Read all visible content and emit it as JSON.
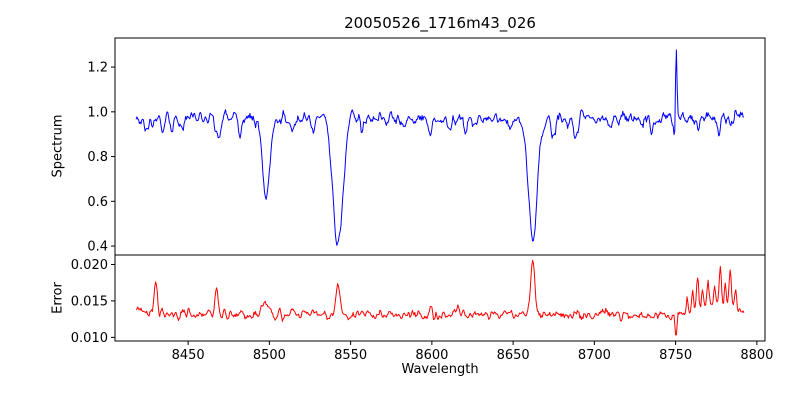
{
  "figure": {
    "background": "#ffffff",
    "axes_color": "#000000"
  },
  "chart_data": [
    {
      "type": "line",
      "name": "spectrum",
      "title": "20050526_1716m43_026",
      "ylabel": "Spectrum",
      "line_color": "#0000ff",
      "legend": "none",
      "grid": false,
      "xlim": [
        8405,
        8805
      ],
      "ylim": [
        0.36,
        1.33
      ],
      "yticks": [
        0.4,
        0.6,
        0.8,
        1.0,
        1.2
      ],
      "ytick_labels": [
        "0.4",
        "0.6",
        "0.8",
        "1.0",
        "1.2"
      ],
      "x_start": 8418,
      "x_end": 8792,
      "x_step": 0.5,
      "continuum_level": 0.972,
      "noise_sigma": 0.025,
      "noise_seed": 20050526,
      "absorption_lines": [
        {
          "center": 8424.0,
          "depth": 0.05,
          "width": 1.0
        },
        {
          "center": 8434.0,
          "depth": 0.06,
          "width": 1.2
        },
        {
          "center": 8440.0,
          "depth": 0.05,
          "width": 1.0
        },
        {
          "center": 8447.0,
          "depth": 0.04,
          "width": 1.0
        },
        {
          "center": 8468.5,
          "depth": 0.09,
          "width": 1.3
        },
        {
          "center": 8482.0,
          "depth": 0.05,
          "width": 1.0
        },
        {
          "center": 8498.0,
          "depth": 0.37,
          "width": 2.3
        },
        {
          "center": 8514.0,
          "depth": 0.07,
          "width": 1.2
        },
        {
          "center": 8527.0,
          "depth": 0.05,
          "width": 1.0
        },
        {
          "center": 8542.1,
          "depth": 0.575,
          "width": 3.0
        },
        {
          "center": 8556.8,
          "depth": 0.05,
          "width": 1.0
        },
        {
          "center": 8582.3,
          "depth": 0.05,
          "width": 1.0
        },
        {
          "center": 8598.8,
          "depth": 0.06,
          "width": 1.2
        },
        {
          "center": 8611.0,
          "depth": 0.05,
          "width": 1.0
        },
        {
          "center": 8621.0,
          "depth": 0.06,
          "width": 1.0
        },
        {
          "center": 8648.0,
          "depth": 0.04,
          "width": 1.0
        },
        {
          "center": 8662.1,
          "depth": 0.54,
          "width": 2.8
        },
        {
          "center": 8674.8,
          "depth": 0.07,
          "width": 1.2
        },
        {
          "center": 8688.6,
          "depth": 0.09,
          "width": 1.4
        },
        {
          "center": 8710.2,
          "depth": 0.05,
          "width": 1.0
        },
        {
          "center": 8729.0,
          "depth": 0.04,
          "width": 1.0
        },
        {
          "center": 8736.0,
          "depth": 0.05,
          "width": 1.0
        },
        {
          "center": 8749.6,
          "depth": 0.14,
          "width": 0.5
        },
        {
          "center": 8757.0,
          "depth": 0.04,
          "width": 0.8
        },
        {
          "center": 8764.0,
          "depth": 0.04,
          "width": 0.8
        },
        {
          "center": 8777.0,
          "depth": 0.05,
          "width": 0.8
        },
        {
          "center": 8784.0,
          "depth": 0.04,
          "width": 0.8
        }
      ],
      "emission_spikes": [
        {
          "center": 8750.3,
          "height": 0.34,
          "width": 0.45
        }
      ]
    },
    {
      "type": "line",
      "name": "error",
      "ylabel": "Error",
      "xlabel": "Wavelength",
      "line_color": "#ff0000",
      "legend": "none",
      "grid": false,
      "xlim": [
        8405,
        8805
      ],
      "ylim": [
        0.0095,
        0.0213
      ],
      "yticks": [
        0.01,
        0.015,
        0.02
      ],
      "ytick_labels": [
        "0.010",
        "0.015",
        "0.020"
      ],
      "xticks": [
        8450,
        8500,
        8550,
        8600,
        8650,
        8700,
        8750,
        8800
      ],
      "xtick_labels": [
        "8450",
        "8500",
        "8550",
        "8600",
        "8650",
        "8700",
        "8750",
        "8800"
      ],
      "x_start": 8418,
      "x_end": 8792,
      "x_step": 0.5,
      "baseline_level": 0.0131,
      "noise_sigma": 0.00055,
      "noise_seed": 1716,
      "spikes": [
        {
          "center": 8421.0,
          "height": 0.0008,
          "width": 4.0
        },
        {
          "center": 8430.0,
          "height": 0.0046,
          "width": 1.0
        },
        {
          "center": 8467.5,
          "height": 0.004,
          "width": 0.9
        },
        {
          "center": 8497.5,
          "height": 0.0018,
          "width": 1.6
        },
        {
          "center": 8506.0,
          "height": 0.0013,
          "width": 0.7
        },
        {
          "center": 8514.0,
          "height": 0.0008,
          "width": 0.7
        },
        {
          "center": 8542.1,
          "height": 0.0038,
          "width": 1.4
        },
        {
          "center": 8598.8,
          "height": 0.0006,
          "width": 1.0
        },
        {
          "center": 8662.1,
          "height": 0.0074,
          "width": 1.3
        },
        {
          "center": 8757.0,
          "height": 0.0022,
          "width": 0.6
        },
        {
          "center": 8760.5,
          "height": 0.003,
          "width": 0.6
        },
        {
          "center": 8763.5,
          "height": 0.004,
          "width": 0.7
        },
        {
          "center": 8766.5,
          "height": 0.0028,
          "width": 0.6
        },
        {
          "center": 8770.0,
          "height": 0.0038,
          "width": 0.7
        },
        {
          "center": 8774.0,
          "height": 0.003,
          "width": 0.6
        },
        {
          "center": 8777.5,
          "height": 0.0055,
          "width": 0.7
        },
        {
          "center": 8780.5,
          "height": 0.0035,
          "width": 0.6
        },
        {
          "center": 8783.5,
          "height": 0.005,
          "width": 0.7
        },
        {
          "center": 8787.0,
          "height": 0.003,
          "width": 0.6
        },
        {
          "center": 8775.0,
          "height": 0.0012,
          "width": 10.0
        }
      ],
      "dips": [
        {
          "center": 8750.3,
          "depth": 0.0028,
          "width": 0.5
        }
      ]
    }
  ]
}
